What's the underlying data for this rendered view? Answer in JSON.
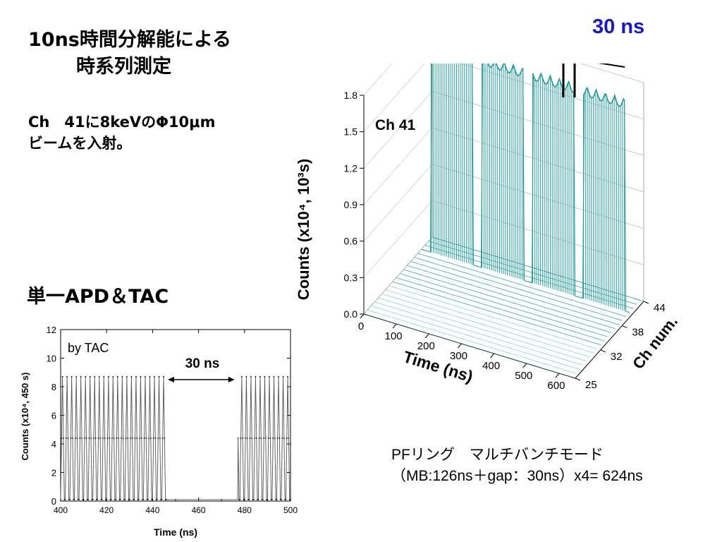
{
  "slide": {
    "title_line1": "10ns時間分解能による",
    "title_line2": "時系列測定",
    "desc_line1": "Ch　41に8keVのΦ10μm",
    "desc_line2": "ビームを入射。",
    "subtitle": "単一APD＆TAC",
    "ring_note_line1": "PFリング　マルチバンチモード",
    "ring_note_line2": "（MB:126ns＋gap：30ns）x4= 624ns",
    "gap_callout": "30 ns",
    "accent_color": "#1717cc"
  },
  "chart_data": [
    {
      "type": "line",
      "ylabel": "Counts (x10⁴, 450 s)",
      "xlabel": "Time (ns)",
      "annotation": "by TAC",
      "gap_annotation": "30 ns",
      "xlim": [
        400,
        500
      ],
      "ylim": [
        0,
        12
      ],
      "x_ticks": [
        "400",
        "420",
        "440",
        "460",
        "480",
        "500"
      ],
      "y_ticks": [
        "0",
        "2",
        "4",
        "6",
        "8",
        "10",
        "12"
      ],
      "bunch_spacing_ns": 2,
      "peak_value": 8.7,
      "baseline_value": 0.1,
      "filled_regions_ns": [
        [
          400,
          446
        ],
        [
          477,
          500
        ]
      ],
      "gap_region_ns": [
        446,
        476
      ],
      "line_color": "#555555"
    },
    {
      "type": "surface3d",
      "zlabel": "Counts (x10⁴, 10³s)",
      "xlabel": "Time (ns)",
      "ylabel": "Ch num.",
      "annotation": "Ch 41",
      "z_ticks": [
        "0.0",
        "0.3",
        "0.6",
        "0.9",
        "1.2",
        "1.5",
        "1.8"
      ],
      "x_ticks": [
        "0",
        "100",
        "200",
        "300",
        "400",
        "500",
        "600"
      ],
      "y_ticks": [
        "25",
        "32",
        "38",
        "44"
      ],
      "zlim": [
        0,
        1.8
      ],
      "peak_channel": 41,
      "peak_value": 1.75,
      "bunch_trains": 4,
      "mesh_color": "#1a9b9b"
    }
  ]
}
